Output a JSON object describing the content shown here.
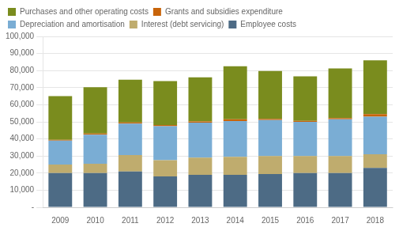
{
  "chart_data": {
    "type": "bar",
    "stacked": true,
    "categories": [
      "2009",
      "2010",
      "2011",
      "2012",
      "2013",
      "2014",
      "2015",
      "2016",
      "2017",
      "2018"
    ],
    "series": [
      {
        "name": "Employee costs",
        "color": "#4d6b85",
        "values": [
          20000,
          20000,
          21000,
          18000,
          19000,
          19000,
          19500,
          20000,
          20000,
          23000
        ]
      },
      {
        "name": "Interest (debt servicing)",
        "color": "#bfac6e",
        "values": [
          5000,
          5500,
          9500,
          9500,
          10000,
          10500,
          10500,
          10000,
          10000,
          8000
        ]
      },
      {
        "name": "Depreciation and amortisation",
        "color": "#7aadd4",
        "values": [
          14000,
          17000,
          18500,
          20000,
          20500,
          21000,
          21000,
          20000,
          21500,
          22000
        ]
      },
      {
        "name": "Grants and subsidies expenditure",
        "color": "#c8640a",
        "values": [
          500,
          700,
          700,
          600,
          700,
          1000,
          700,
          600,
          700,
          1500
        ]
      },
      {
        "name": "Purchases and other operating costs",
        "color": "#7a8c1e",
        "values": [
          25500,
          27000,
          25000,
          25700,
          25800,
          31000,
          28000,
          26000,
          29000,
          31500
        ]
      }
    ],
    "ylim": [
      0,
      100000
    ],
    "yticks": [
      {
        "value": 0,
        "label": "-"
      },
      {
        "value": 10000,
        "label": "10,000"
      },
      {
        "value": 20000,
        "label": "20,000"
      },
      {
        "value": 30000,
        "label": "30,000"
      },
      {
        "value": 40000,
        "label": "40,000"
      },
      {
        "value": 50000,
        "label": "50,000"
      },
      {
        "value": 60000,
        "label": "60,000"
      },
      {
        "value": 70000,
        "label": "70,000"
      },
      {
        "value": 80000,
        "label": "80,000"
      },
      {
        "value": 90000,
        "label": "90,000"
      },
      {
        "value": 100000,
        "label": "100,000"
      }
    ],
    "grid": true,
    "legend": "top"
  }
}
